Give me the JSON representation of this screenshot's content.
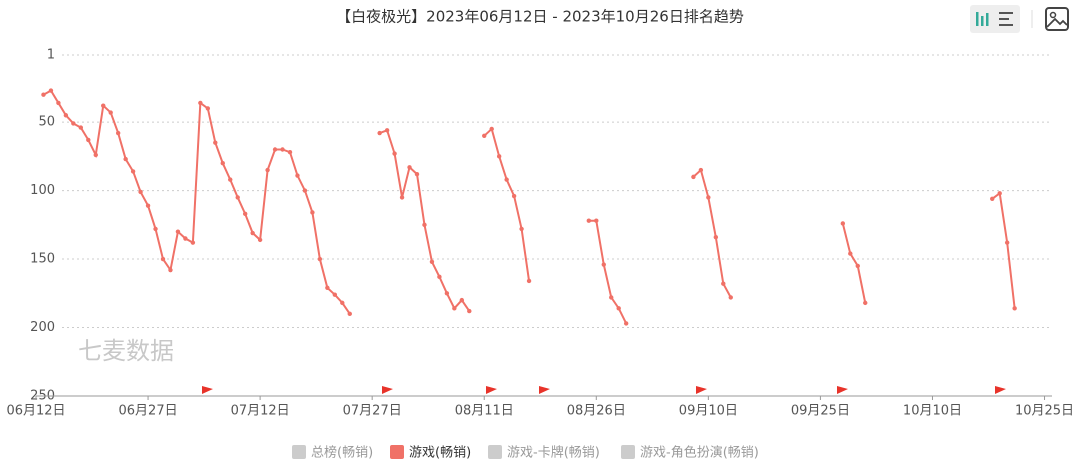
{
  "chart_data": {
    "type": "line",
    "title": "【白夜极光】2023年06月12日 - 2023年10月26日排名趋势",
    "watermark": "七麦数据",
    "categories": [
      "06月12日",
      null,
      null,
      null,
      null,
      null,
      null,
      null,
      null,
      null,
      null,
      null,
      null,
      null,
      null,
      "06月27日",
      null,
      null,
      null,
      null,
      null,
      null,
      null,
      null,
      null,
      null,
      null,
      null,
      null,
      null,
      "07月12日",
      null,
      null,
      null,
      null,
      null,
      null,
      null,
      null,
      null,
      null,
      null,
      null,
      null,
      null,
      "07月27日",
      null,
      null,
      null,
      null,
      null,
      null,
      null,
      null,
      null,
      null,
      null,
      null,
      null,
      null,
      "08月11日",
      null,
      null,
      null,
      null,
      null,
      null,
      null,
      null,
      null,
      null,
      null,
      null,
      null,
      null,
      "08月26日",
      null,
      null,
      null,
      null,
      null,
      null,
      null,
      null,
      null,
      null,
      null,
      null,
      null,
      null,
      "09月10日",
      null,
      null,
      null,
      null,
      null,
      null,
      null,
      null,
      null,
      null,
      null,
      null,
      null,
      null,
      "09月25日",
      null,
      null,
      null,
      null,
      null,
      null,
      null,
      null,
      null,
      null,
      null,
      null,
      null,
      null,
      "10月10日",
      null,
      null,
      null,
      null,
      null,
      null,
      null,
      null,
      null,
      null,
      null,
      null,
      null,
      null,
      "10月25日",
      null
    ],
    "series": [
      {
        "name": "游戏(畅销)",
        "color": "#f07167",
        "values": [
          null,
          30,
          27,
          36,
          45,
          51,
          54,
          63,
          74,
          38,
          43,
          58,
          77,
          86,
          101,
          111,
          128,
          150,
          158,
          130,
          135,
          138,
          36,
          40,
          65,
          80,
          92,
          105,
          117,
          131,
          136,
          85,
          70,
          70,
          72,
          89,
          100,
          116,
          150,
          171,
          176,
          182,
          190,
          null,
          null,
          null,
          58,
          56,
          73,
          105,
          83,
          88,
          125,
          152,
          163,
          175,
          186,
          180,
          188,
          null,
          60,
          55,
          75,
          92,
          104,
          128,
          166,
          null,
          null,
          null,
          null,
          null,
          null,
          null,
          122,
          122,
          154,
          178,
          186,
          197,
          null,
          null,
          null,
          null,
          null,
          null,
          null,
          null,
          90,
          85,
          105,
          134,
          168,
          178,
          null,
          null,
          null,
          null,
          null,
          null,
          null,
          null,
          null,
          null,
          null,
          null,
          null,
          null,
          124,
          146,
          155,
          182,
          null,
          null,
          null,
          null,
          null,
          null,
          null,
          null,
          null,
          null,
          null,
          null,
          null,
          null,
          null,
          null,
          106,
          102,
          138,
          186,
          null,
          null,
          null,
          null,
          null
        ]
      }
    ],
    "inactive_series": [
      {
        "name": "总榜(畅销)",
        "color": "#cccccc"
      },
      {
        "name": "游戏-卡牌(畅销)",
        "color": "#cccccc"
      },
      {
        "name": "游戏-角色扮演(畅销)",
        "color": "#cccccc"
      }
    ],
    "ylim": [
      1,
      250
    ],
    "y_inverted": true,
    "yticks": [
      1,
      50,
      100,
      150,
      200,
      250
    ],
    "grid": true
  }
}
